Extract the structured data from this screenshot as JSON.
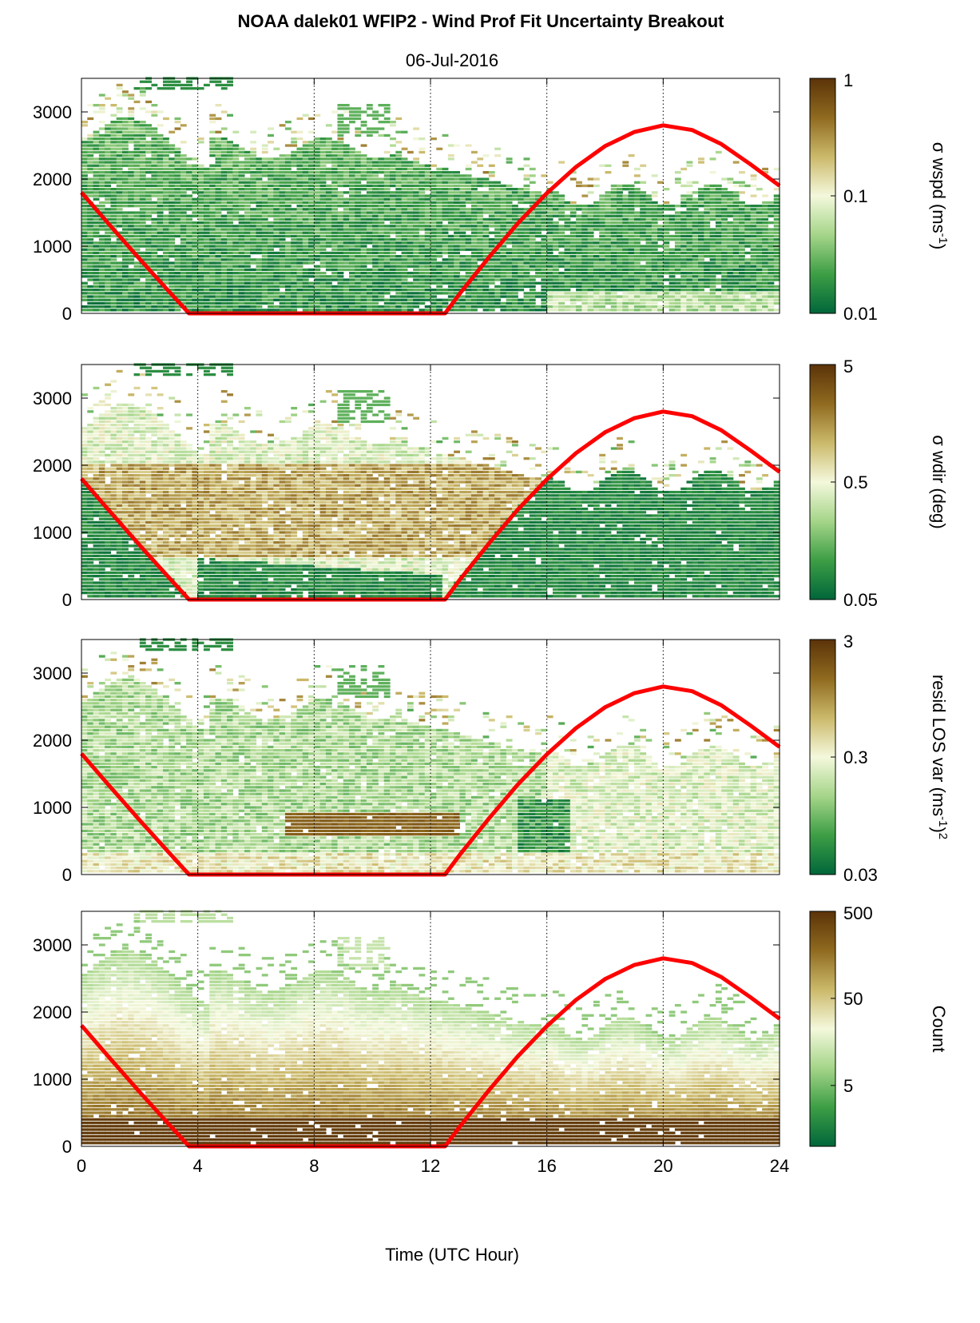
{
  "chart_data": {
    "type": "heatmap",
    "title": "NOAA dalek01 WFIP2 - Wind Prof Fit Uncertainty Breakout",
    "subtitle": "06-Jul-2016",
    "xlabel": "Time (UTC Hour)",
    "xlim": [
      0,
      24
    ],
    "x_ticks": [
      "0",
      "4",
      "8",
      "12",
      "16",
      "20",
      "24"
    ],
    "ylim": [
      0,
      3500
    ],
    "y_ticks": [
      "0",
      "1000",
      "2000",
      "3000"
    ],
    "vertical_gridlines_at_hours": [
      4,
      8,
      12,
      16,
      20
    ],
    "colormap": [
      "#00663a",
      "#3d9e45",
      "#a5d589",
      "#f4f8dc",
      "#cbb96a",
      "#8f6a1f",
      "#5b3309"
    ],
    "overlay_color": "#ff0000",
    "overlay_curve": {
      "x": [
        0,
        1,
        2,
        3,
        3.7,
        4,
        6,
        8,
        10,
        12,
        12.5,
        13,
        14,
        15,
        16,
        17,
        18,
        19,
        20,
        21,
        22,
        23,
        24
      ],
      "y": [
        1800,
        1300,
        810,
        330,
        0,
        0,
        0,
        0,
        0,
        0,
        0,
        290,
        830,
        1340,
        1790,
        2180,
        2490,
        2700,
        2800,
        2730,
        2520,
        2220,
        1900
      ]
    },
    "panels": [
      {
        "colorbar_label": "σ wspd (ms",
        "colorbar_label_sup": "-1",
        "colorbar_label_tail": ")",
        "colorbar_ticks": [
          "1",
          "0.1",
          "0.01"
        ],
        "scale": "log",
        "clim": [
          0.01,
          1
        ]
      },
      {
        "colorbar_label": "σ wdir (deg)",
        "colorbar_ticks": [
          "5",
          "0.5",
          "0.05"
        ],
        "scale": "log",
        "clim": [
          0.05,
          5
        ]
      },
      {
        "colorbar_label": "resid LOS var (ms",
        "colorbar_label_sup": "-1",
        "colorbar_label_tail": ")",
        "colorbar_label_sup2": "2",
        "colorbar_ticks": [
          "3",
          "0.3",
          "0.03"
        ],
        "scale": "log",
        "clim": [
          0.03,
          3
        ]
      },
      {
        "colorbar_label": "Count",
        "colorbar_ticks": [
          "500",
          "50",
          "5"
        ],
        "scale": "log",
        "clim": [
          1,
          500
        ]
      }
    ]
  }
}
